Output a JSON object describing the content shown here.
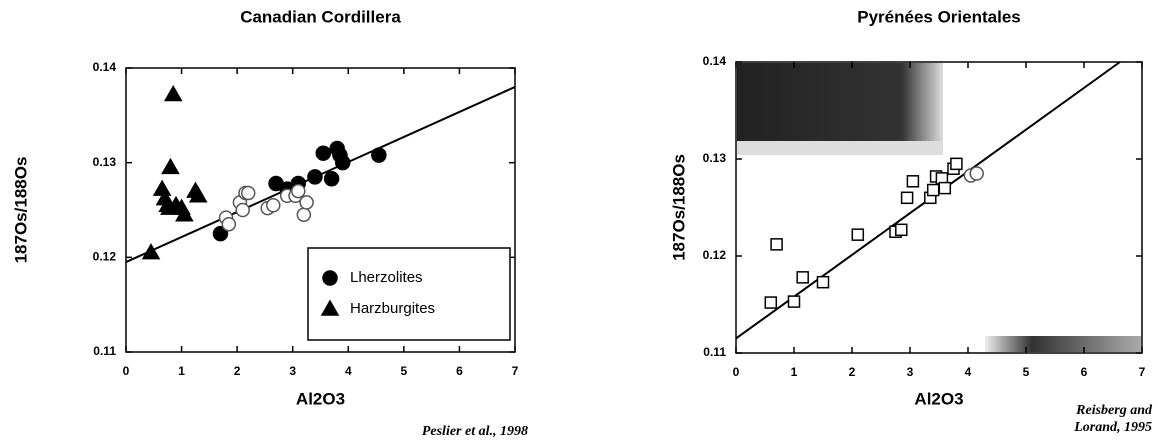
{
  "chart_data": [
    {
      "type": "scatter",
      "title": "Canadian Cordillera",
      "x_label": "Al2O3",
      "y_label": "187Os/188Os",
      "annotation": [
        "Peslier et al., 1998"
      ],
      "xlim": [
        0,
        7
      ],
      "ylim": [
        0.11,
        0.14
      ],
      "xticks": [
        0,
        1,
        2,
        3,
        4,
        5,
        6,
        7
      ],
      "yticks": [
        0.11,
        0.12,
        0.13,
        0.14
      ],
      "legend": "lower right",
      "fit_line": {
        "x": [
          0,
          7
        ],
        "y": [
          0.1195,
          0.138
        ]
      },
      "series": [
        {
          "name": "Lherzolites",
          "marker": "circle",
          "color": "#000000",
          "x": [
            1.7,
            2.7,
            2.9,
            3.1,
            3.4,
            3.55,
            3.7,
            3.8,
            3.85,
            3.9,
            4.55
          ],
          "values": [
            0.1225,
            0.1278,
            0.1272,
            0.1278,
            0.1285,
            0.131,
            0.1283,
            0.1315,
            0.1308,
            0.13,
            0.1308
          ]
        },
        {
          "name": "Harzburgites",
          "marker": "triangle",
          "color": "#000000",
          "x": [
            0.45,
            0.65,
            0.7,
            0.75,
            0.78,
            0.8,
            0.85,
            0.9,
            1.0,
            1.05,
            1.25,
            1.3
          ],
          "values": [
            0.1205,
            0.1272,
            0.1262,
            0.1255,
            0.1252,
            0.1295,
            0.1372,
            0.1255,
            0.1252,
            0.1245,
            0.127,
            0.1265
          ]
        },
        {
          "marker": "open-circle",
          "color": "#000000",
          "x": [
            1.8,
            1.85,
            2.05,
            2.1,
            2.15,
            2.2,
            2.55,
            2.65,
            2.9,
            3.05,
            3.1,
            3.2,
            3.25
          ],
          "values": [
            0.1242,
            0.1235,
            0.1258,
            0.125,
            0.1268,
            0.1268,
            0.1252,
            0.1255,
            0.1265,
            0.1265,
            0.127,
            0.1245,
            0.1258
          ]
        }
      ]
    },
    {
      "type": "scatter",
      "title": "Pyrénées Orientales",
      "x_label": "Al2O3",
      "y_label": "187Os/188Os",
      "annotation": [
        "Reisberg and",
        "Lorand, 1995"
      ],
      "xlim": [
        0,
        7
      ],
      "ylim": [
        0.11,
        0.14
      ],
      "xticks": [
        0,
        1,
        2,
        3,
        4,
        5,
        6,
        7
      ],
      "yticks": [
        0.11,
        0.12,
        0.13,
        0.14
      ],
      "fit_line": {
        "x": [
          0,
          6.62
        ],
        "y": [
          0.1115,
          0.14
        ]
      },
      "series": [
        {
          "marker": "open-square",
          "color": "#000000",
          "x": [
            0.6,
            0.7,
            1.0,
            1.15,
            1.5,
            2.1,
            2.75,
            2.85,
            2.95,
            3.05,
            3.35,
            3.4,
            3.45,
            3.55,
            3.6,
            3.75,
            3.8
          ],
          "values": [
            0.1152,
            0.1212,
            0.1153,
            0.1178,
            0.1173,
            0.1222,
            0.1225,
            0.1227,
            0.126,
            0.1277,
            0.126,
            0.1268,
            0.1282,
            0.128,
            0.127,
            0.129,
            0.1295
          ]
        },
        {
          "marker": "open-circle",
          "color": "#000000",
          "x": [
            4.05,
            4.15
          ],
          "values": [
            0.1283,
            0.1285
          ]
        }
      ]
    }
  ]
}
